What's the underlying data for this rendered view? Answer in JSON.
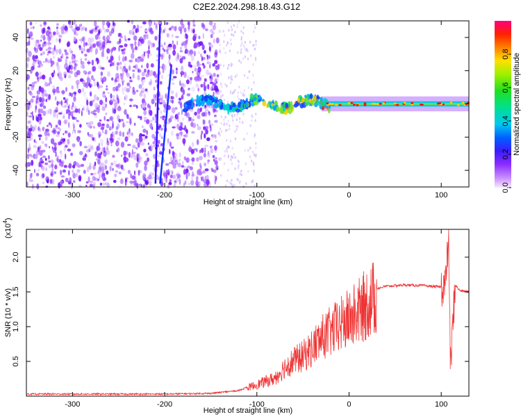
{
  "figure": {
    "title": "C2E2.2024.298.18.43.G12"
  },
  "colors": {
    "spectrogram_background": "#ffffff",
    "snr_line": "#ee3333",
    "axis": "#000000"
  },
  "chart_data": [
    {
      "type": "heatmap",
      "title": "C2E2.2024.298.18.43.G12",
      "xlabel": "Height of straight line (km)",
      "ylabel": "Frequency (Hz)",
      "xlim": [
        -350,
        130
      ],
      "ylim": [
        -50,
        50
      ],
      "x_ticks": [
        -300,
        -200,
        -100,
        0,
        100
      ],
      "x_tick_labels": [
        "-300",
        "-200",
        "-100",
        "0",
        "100"
      ],
      "y_ticks": [
        -40,
        -20,
        0,
        20,
        40
      ],
      "y_tick_labels": [
        "-40",
        "-20",
        "0",
        "20",
        "40"
      ],
      "colormap": "rainbow (magenta-purple-blue-cyan-green-yellow-red)",
      "colorbar": {
        "label": "Normalized spectral amplitude",
        "range": [
          0,
          1
        ],
        "ticks": [
          0,
          0.2,
          0.4,
          0.6,
          0.8
        ],
        "tick_labels": [
          "0.0",
          "0.2",
          "0.4",
          "0.6",
          "0.8"
        ]
      },
      "features": {
        "noise_region_x": [
          -350,
          -140
        ],
        "sparse_noise_region_x": [
          -140,
          -100
        ],
        "signal_band_center_hz": 0,
        "signal_band_x": [
          -180,
          130
        ],
        "signal_band_halfwidth_hz": 3,
        "diagonal_streak_x": [
          -210,
          -205
        ],
        "diagonal_streak_y": [
          -48,
          48
        ],
        "diagonal_streak_2_x": [
          -205,
          -193
        ],
        "diagonal_streak_2_y": [
          -48,
          22
        ]
      }
    },
    {
      "type": "line",
      "title": "",
      "xlabel": "Height of straight line (km)",
      "ylabel": "SNR (10 * v/v)",
      "multiplier_label": "(x10",
      "multiplier_exponent": "4",
      "multiplier_close": ")",
      "xlim": [
        -350,
        130
      ],
      "ylim": [
        0,
        2.4
      ],
      "x_ticks": [
        -300,
        -200,
        -100,
        0,
        100
      ],
      "x_tick_labels": [
        "-300",
        "-200",
        "-100",
        "0",
        "100"
      ],
      "y_ticks": [
        0.5,
        1.0,
        1.5,
        2.0
      ],
      "y_tick_labels": [
        "0.5",
        "1.0",
        "1.5",
        "2.0"
      ],
      "series": [
        {
          "key_points_x": [
            -350,
            -200,
            -150,
            -120,
            -100,
            -80,
            -70,
            -60,
            -50,
            -40,
            -30,
            -20,
            -10,
            0,
            10,
            20,
            30,
            40,
            60,
            80,
            100,
            105,
            108,
            110,
            115,
            120,
            130
          ],
          "key_points_y": [
            0.03,
            0.03,
            0.04,
            0.08,
            0.18,
            0.28,
            0.45,
            0.55,
            0.62,
            0.75,
            0.9,
            1.0,
            1.1,
            1.2,
            1.3,
            1.45,
            1.55,
            1.58,
            1.6,
            1.59,
            1.57,
            1.65,
            2.3,
            0.4,
            1.6,
            1.52,
            1.5
          ]
        }
      ]
    }
  ]
}
